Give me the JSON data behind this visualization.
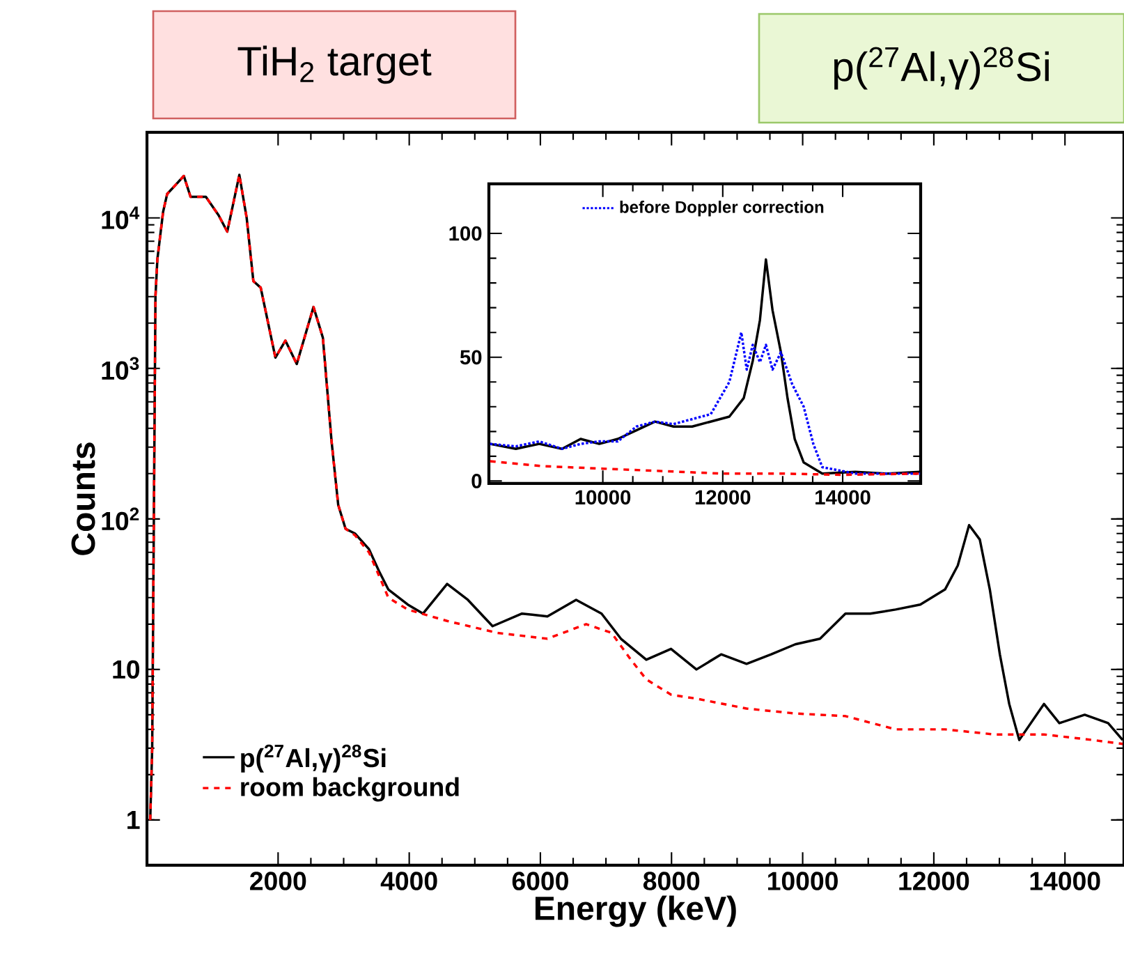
{
  "chart_data": [
    {
      "type": "line",
      "xlabel": "Energy (keV)",
      "ylabel": "Counts",
      "log": "y",
      "xlim": [
        0,
        14900
      ],
      "ylim": [
        0.5,
        37000
      ],
      "xticks": [
        2000,
        4000,
        6000,
        8000,
        10000,
        12000,
        14000
      ],
      "yticks": [
        1,
        10,
        {
          "value": 100,
          "label": "10$^{2}$"
        },
        {
          "value": 1000,
          "label": "10$^{3}$"
        },
        {
          "value": 10000,
          "label": "10$^{4}$"
        }
      ],
      "legend": "bottom left",
      "annotations": [
        "TiH$_{2}$ target",
        "p($^{27}$Al,γ)$^{28}$Si"
      ],
      "series": [
        {
          "name": "p($^{27}$Al,γ)$^{28}$Si",
          "color": "#000000",
          "line_style": "solid",
          "x": [
            50,
            80,
            130,
            159,
            247,
            308,
            563,
            665,
            899,
            1093,
            1225,
            1409,
            1521,
            1623,
            1735,
            1959,
            2112,
            2285,
            2540,
            2683,
            2815,
            2917,
            3029,
            3172,
            3386,
            3539,
            3681,
            3977,
            4211,
            4578,
            4894,
            5271,
            5720,
            6107,
            6545,
            6933,
            7228,
            7615,
            7992,
            8380,
            8757,
            9144,
            9521,
            9888,
            10265,
            10652,
            11030,
            11417,
            11794,
            12171,
            12365,
            12477,
            12538,
            12701,
            12854,
            13007,
            13150,
            13303,
            13680,
            13914,
            14301,
            14658,
            14880
          ],
          "values": [
            1,
            3,
            3000,
            5300,
            11000,
            14400,
            19000,
            13800,
            13800,
            10400,
            8100,
            19300,
            10000,
            3800,
            3440,
            1180,
            1530,
            1070,
            2560,
            1600,
            330,
            124,
            86,
            80,
            63,
            45,
            34,
            27,
            23.5,
            37,
            29,
            19.4,
            23.5,
            22.5,
            29,
            23.5,
            16,
            11.6,
            13.7,
            10,
            12.6,
            10.9,
            12.6,
            14.7,
            16,
            23.5,
            23.5,
            25,
            27,
            34,
            49,
            73,
            91,
            73,
            34,
            12.6,
            5.9,
            3.4,
            5.9,
            4.4,
            5,
            4.4,
            3.4
          ]
        },
        {
          "name": "room background",
          "color": "#ff0000",
          "line_style": "dashed",
          "x": [
            50,
            80,
            130,
            159,
            247,
            308,
            563,
            665,
            899,
            1093,
            1225,
            1409,
            1521,
            1623,
            1735,
            1959,
            2112,
            2285,
            2540,
            2683,
            2815,
            2917,
            3029,
            3172,
            3386,
            3539,
            3681,
            3977,
            4578,
            5343,
            6107,
            6698,
            7086,
            7381,
            7615,
            7992,
            8380,
            9144,
            9888,
            10652,
            11417,
            12171,
            12925,
            13680,
            14424,
            14880
          ],
          "values": [
            1,
            3,
            3000,
            5300,
            11000,
            14400,
            19000,
            13800,
            13800,
            10400,
            8100,
            19300,
            10000,
            3800,
            3440,
            1180,
            1530,
            1070,
            2560,
            1600,
            330,
            124,
            86,
            78,
            60,
            42,
            30,
            25,
            21,
            17.5,
            16,
            20,
            17.5,
            11.6,
            8.6,
            6.8,
            6.4,
            5.5,
            5.1,
            4.9,
            4.0,
            4.0,
            3.7,
            3.7,
            3.4,
            3.2
          ]
        }
      ]
    },
    {
      "type": "line",
      "xlim": [
        8100,
        15300
      ],
      "ylim": [
        -1,
        120
      ],
      "xticks": [
        10000,
        12000,
        14000
      ],
      "yticks": [
        0,
        50,
        100
      ],
      "legend": "top",
      "series": [
        {
          "color": "#000000",
          "line_style": "solid",
          "x": [
            8120,
            8550,
            8940,
            9320,
            9630,
            9940,
            10250,
            10560,
            10870,
            11180,
            11490,
            11800,
            12110,
            12350,
            12500,
            12620,
            12720,
            12830,
            12970,
            13080,
            13200,
            13350,
            13660,
            14210,
            14750,
            15290
          ],
          "values": [
            15,
            13,
            15,
            13,
            17,
            15,
            17,
            20.5,
            24,
            22,
            22,
            24,
            26,
            33.5,
            48.5,
            65,
            89.5,
            69,
            52,
            33.5,
            17,
            7.5,
            3,
            3.7,
            3,
            3.7
          ]
        },
        {
          "name": "before Doppler correction",
          "color": "#0000ff",
          "line_style": "dotted",
          "x": [
            8120,
            8550,
            8940,
            9320,
            9630,
            9940,
            10250,
            10560,
            10870,
            11180,
            11490,
            11800,
            12110,
            12310,
            12400,
            12500,
            12620,
            12720,
            12830,
            12970,
            13160,
            13350,
            13510,
            13660,
            14210,
            14750,
            15290
          ],
          "values": [
            15,
            14,
            16,
            13,
            15,
            16,
            16,
            22,
            24,
            23,
            25,
            27,
            40,
            60,
            45,
            55,
            48,
            55,
            45,
            52,
            39,
            30,
            15,
            5.6,
            3,
            3,
            3
          ]
        },
        {
          "color": "#ff0000",
          "line_style": "dashed",
          "x": [
            8120,
            9000,
            10000,
            11000,
            12000,
            13000,
            14000,
            15290
          ],
          "values": [
            8,
            6,
            5,
            4,
            3,
            3,
            2.5,
            3
          ]
        }
      ]
    }
  ]
}
